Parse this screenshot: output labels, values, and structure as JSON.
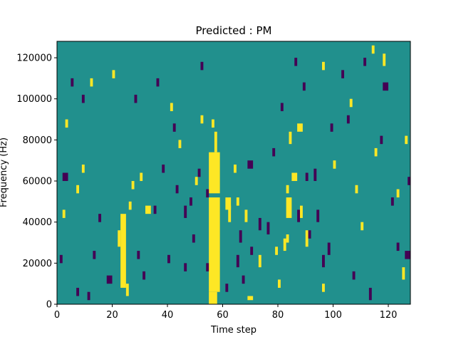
{
  "chart_data": {
    "type": "heatmap",
    "title": "Predicted : PM",
    "xlabel": "Time step",
    "ylabel": "Frequency (Hz)",
    "xlim": [
      0,
      128
    ],
    "ylim": [
      0,
      128000
    ],
    "x_ticks": [
      0,
      20,
      40,
      60,
      80,
      100,
      120
    ],
    "x_tick_labels": [
      "0",
      "20",
      "40",
      "60",
      "80",
      "100",
      "120"
    ],
    "y_ticks": [
      0,
      20000,
      40000,
      60000,
      80000,
      100000,
      120000
    ],
    "y_tick_labels": [
      "0",
      "20000",
      "40000",
      "60000",
      "80000",
      "100000",
      "120000"
    ],
    "time_steps": 128,
    "frequency_bins": 64,
    "bin_height_hz": 2000,
    "colormap": "viridis",
    "colors": {
      "background": "#21908d",
      "high": "#fde725",
      "low": "#440154"
    },
    "grid": false,
    "note_encoding": "cells: [time_step_start, time_step_end, freq_start_hz, freq_end_hz, level]; level 1 = high (yellow), -1 = low (purple); all other cells are the mid background level",
    "cells": [
      [
        55,
        59,
        54000,
        74000,
        1
      ],
      [
        55,
        59,
        6000,
        52000,
        1
      ],
      [
        57,
        58,
        74000,
        84000,
        1
      ],
      [
        56,
        57,
        86000,
        90000,
        1
      ],
      [
        23,
        25,
        8000,
        44000,
        1
      ],
      [
        22,
        23,
        28000,
        36000,
        1
      ],
      [
        26,
        27,
        46000,
        50000,
        1
      ],
      [
        32,
        34,
        44000,
        48000,
        1
      ],
      [
        27,
        28,
        56000,
        60000,
        1
      ],
      [
        90,
        91,
        28000,
        36000,
        1
      ],
      [
        83,
        85,
        42000,
        52000,
        1
      ],
      [
        83,
        84,
        54000,
        58000,
        1
      ],
      [
        85,
        87,
        60000,
        64000,
        1
      ],
      [
        87,
        89,
        84000,
        88000,
        1
      ],
      [
        84,
        85,
        78000,
        84000,
        1
      ],
      [
        83,
        84,
        30000,
        34000,
        1
      ],
      [
        62,
        63,
        40000,
        48000,
        1
      ],
      [
        61,
        63,
        46000,
        52000,
        1
      ],
      [
        69,
        71,
        2000,
        4000,
        1
      ],
      [
        82,
        83,
        26000,
        32000,
        1
      ],
      [
        73,
        74,
        18000,
        24000,
        1
      ],
      [
        88,
        89,
        42000,
        48000,
        1
      ],
      [
        118,
        119,
        116000,
        122000,
        1
      ],
      [
        114,
        115,
        122000,
        126000,
        1
      ],
      [
        115,
        116,
        72000,
        76000,
        1
      ],
      [
        96,
        97,
        114000,
        118000,
        1
      ],
      [
        106,
        107,
        96000,
        100000,
        1
      ],
      [
        108,
        109,
        54000,
        58000,
        1
      ],
      [
        41,
        42,
        94000,
        98000,
        1
      ],
      [
        44,
        45,
        76000,
        80000,
        1
      ],
      [
        68,
        69,
        40000,
        46000,
        1
      ],
      [
        20,
        21,
        110000,
        114000,
        1
      ],
      [
        12,
        13,
        106000,
        110000,
        1
      ],
      [
        9,
        10,
        64000,
        68000,
        1
      ],
      [
        2,
        3,
        42000,
        46000,
        1
      ],
      [
        3,
        4,
        86000,
        90000,
        1
      ],
      [
        7,
        8,
        54000,
        58000,
        1
      ],
      [
        25,
        26,
        4000,
        10000,
        1
      ],
      [
        30,
        31,
        60000,
        64000,
        1
      ],
      [
        50,
        51,
        58000,
        62000,
        1
      ],
      [
        64,
        65,
        64000,
        68000,
        1
      ],
      [
        79,
        80,
        24000,
        28000,
        1
      ],
      [
        80,
        81,
        8000,
        12000,
        1
      ],
      [
        100,
        101,
        66000,
        70000,
        1
      ],
      [
        123,
        124,
        52000,
        56000,
        1
      ],
      [
        126,
        127,
        78000,
        82000,
        1
      ],
      [
        55,
        58,
        0,
        6000,
        1
      ],
      [
        52,
        53,
        88000,
        92000,
        1
      ],
      [
        65,
        66,
        48000,
        52000,
        1
      ],
      [
        96,
        97,
        6000,
        10000,
        1
      ],
      [
        110,
        111,
        36000,
        40000,
        1
      ],
      [
        125,
        126,
        12000,
        18000,
        1
      ],
      [
        69,
        71,
        66000,
        70000,
        -1
      ],
      [
        66,
        67,
        30000,
        36000,
        -1
      ],
      [
        67,
        68,
        10000,
        14000,
        -1
      ],
      [
        65,
        66,
        18000,
        24000,
        -1
      ],
      [
        86,
        87,
        116000,
        120000,
        -1
      ],
      [
        89,
        90,
        104000,
        108000,
        -1
      ],
      [
        111,
        112,
        116000,
        120000,
        -1
      ],
      [
        118,
        120,
        104000,
        108000,
        -1
      ],
      [
        103,
        104,
        110000,
        114000,
        -1
      ],
      [
        2,
        4,
        60000,
        64000,
        -1
      ],
      [
        18,
        20,
        10000,
        14000,
        -1
      ],
      [
        13,
        14,
        22000,
        26000,
        -1
      ],
      [
        46,
        47,
        42000,
        48000,
        -1
      ],
      [
        46,
        47,
        16000,
        20000,
        -1
      ],
      [
        49,
        50,
        30000,
        34000,
        -1
      ],
      [
        54,
        55,
        52000,
        56000,
        -1
      ],
      [
        54,
        55,
        16000,
        20000,
        -1
      ],
      [
        48,
        49,
        48000,
        52000,
        -1
      ],
      [
        87,
        88,
        40000,
        46000,
        -1
      ],
      [
        90,
        91,
        60000,
        64000,
        -1
      ],
      [
        93,
        94,
        60000,
        66000,
        -1
      ],
      [
        91,
        92,
        32000,
        36000,
        -1
      ],
      [
        94,
        95,
        40000,
        46000,
        -1
      ],
      [
        96,
        97,
        18000,
        24000,
        -1
      ],
      [
        98,
        99,
        24000,
        30000,
        -1
      ],
      [
        113,
        114,
        2000,
        8000,
        -1
      ],
      [
        127,
        128,
        58000,
        62000,
        -1
      ],
      [
        126,
        128,
        22000,
        26000,
        -1
      ],
      [
        123,
        124,
        26000,
        30000,
        -1
      ],
      [
        99,
        100,
        84000,
        88000,
        -1
      ],
      [
        73,
        74,
        36000,
        42000,
        -1
      ],
      [
        70,
        71,
        24000,
        28000,
        -1
      ],
      [
        76,
        77,
        34000,
        40000,
        -1
      ],
      [
        61,
        62,
        6000,
        10000,
        -1
      ],
      [
        35,
        36,
        44000,
        48000,
        -1
      ],
      [
        40,
        41,
        20000,
        24000,
        -1
      ],
      [
        43,
        44,
        54000,
        58000,
        -1
      ],
      [
        29,
        30,
        22000,
        26000,
        -1
      ],
      [
        31,
        32,
        12000,
        16000,
        -1
      ],
      [
        28,
        29,
        98000,
        102000,
        -1
      ],
      [
        36,
        37,
        106000,
        110000,
        -1
      ],
      [
        52,
        53,
        114000,
        118000,
        -1
      ],
      [
        9,
        10,
        98000,
        102000,
        -1
      ],
      [
        5,
        6,
        106000,
        110000,
        -1
      ],
      [
        1,
        2,
        20000,
        24000,
        -1
      ],
      [
        7,
        8,
        4000,
        8000,
        -1
      ],
      [
        11,
        12,
        2000,
        6000,
        -1
      ],
      [
        15,
        16,
        40000,
        44000,
        -1
      ],
      [
        38,
        39,
        64000,
        68000,
        -1
      ],
      [
        42,
        43,
        84000,
        88000,
        -1
      ],
      [
        51,
        52,
        62000,
        66000,
        -1
      ],
      [
        78,
        79,
        72000,
        76000,
        -1
      ],
      [
        81,
        82,
        94000,
        98000,
        -1
      ],
      [
        105,
        106,
        88000,
        92000,
        -1
      ],
      [
        117,
        118,
        78000,
        82000,
        -1
      ],
      [
        121,
        122,
        48000,
        52000,
        -1
      ],
      [
        107,
        108,
        12000,
        16000,
        -1
      ]
    ]
  }
}
